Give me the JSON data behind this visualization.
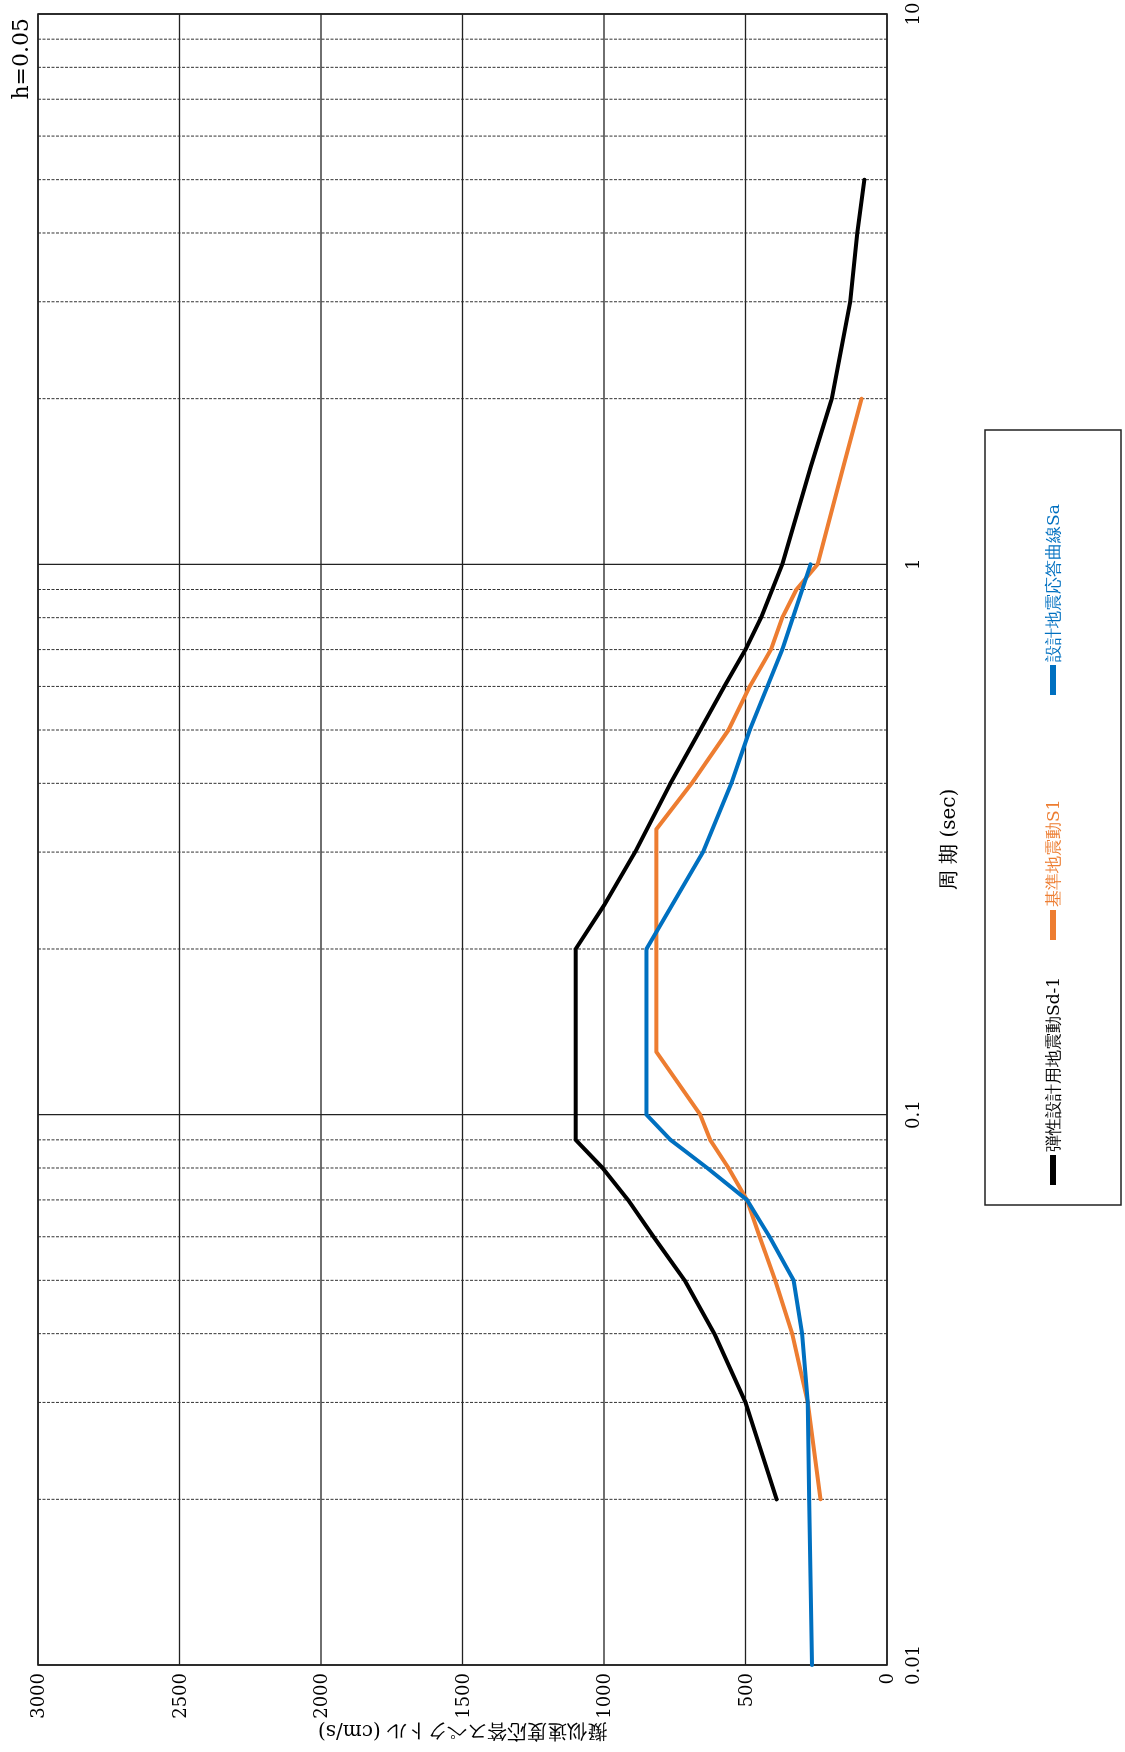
{
  "chart_data": {
    "type": "line",
    "xlabel": "擬似速度応答スペクトル (cm/s)",
    "ylabel": "周 期 (sec)",
    "log": "y",
    "grid": true,
    "legend": "right",
    "xlim": [
      3000,
      0
    ],
    "ylim": [
      0.01,
      10
    ],
    "xticks": [
      0,
      500,
      1000,
      1500,
      2000,
      2500,
      3000
    ],
    "yticks": [
      0.01,
      0.1,
      1,
      10
    ],
    "annotations": [
      "h=0.05"
    ],
    "series": [
      {
        "name": "弾性設計用地震動Sd-1",
        "color": "#000000",
        "values": [
          0.02,
          0.03,
          0.04,
          0.05,
          0.06,
          0.07,
          0.08,
          0.09,
          0.2,
          0.24,
          0.3,
          0.4,
          0.5,
          0.6,
          0.7,
          0.8,
          1,
          1.5,
          2,
          3,
          4,
          5
        ],
        "x": [
          390,
          500,
          610,
          715,
          825,
          915,
          1005,
          1100,
          1100,
          1000,
          890,
          765,
          660,
          575,
          500,
          445,
          370,
          270,
          195,
          130,
          105,
          80
        ]
      },
      {
        "name": "基準地震動S1",
        "color": "#ed7d31",
        "values": [
          0.02,
          0.03,
          0.04,
          0.05,
          0.06,
          0.07,
          0.08,
          0.09,
          0.1,
          0.13,
          0.33,
          0.4,
          0.5,
          0.6,
          0.7,
          0.8,
          0.9,
          1,
          1.5,
          2
        ],
        "x": [
          235,
          280,
          335,
          395,
          450,
          495,
          560,
          625,
          660,
          815,
          815,
          690,
          560,
          485,
          410,
          370,
          320,
          245,
          155,
          90
        ]
      },
      {
        "name": "設計地震応答曲線Sa",
        "color": "#0070c0",
        "values": [
          0.01,
          0.02,
          0.03,
          0.04,
          0.05,
          0.06,
          0.07,
          0.08,
          0.09,
          0.1,
          0.2,
          0.3,
          0.4,
          0.5,
          0.7,
          1
        ],
        "x": [
          265,
          275,
          280,
          300,
          330,
          415,
          495,
          635,
          765,
          850,
          850,
          650,
          550,
          485,
          370,
          270
        ]
      }
    ]
  }
}
